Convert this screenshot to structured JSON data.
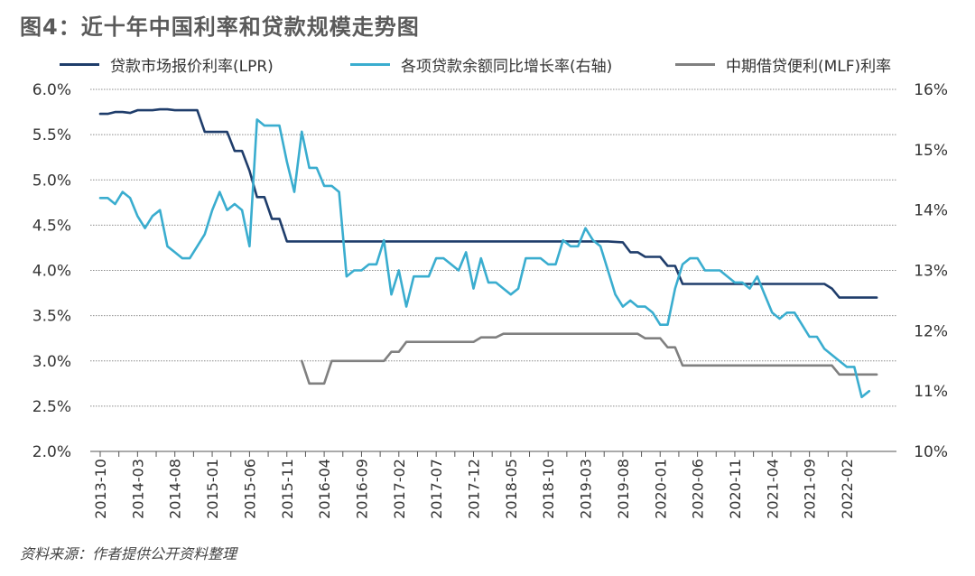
{
  "title": "图4：近十年中国利率和贷款规模走势图",
  "source": "资料来源：作者提供公开资料整理",
  "legend": [
    {
      "name": "贷款市场报价利率(LPR)",
      "color": "#1f3d6b"
    },
    {
      "name": "各项贷款余额同比增长率(右轴)",
      "color": "#3aadcf"
    },
    {
      "name": "中期借贷便利(MLF)利率",
      "color": "#808080"
    }
  ],
  "chart_data": {
    "type": "line",
    "x_axis": {
      "ticks": [
        "2013-10",
        "2014-03",
        "2014-08",
        "2015-01",
        "2015-06",
        "2015-11",
        "2016-04",
        "2016-09",
        "2017-02",
        "2017-07",
        "2017-12",
        "2018-05",
        "2018-10",
        "2019-03",
        "2019-08",
        "2020-01",
        "2020-06",
        "2020-11",
        "2021-04",
        "2021-09",
        "2022-02"
      ]
    },
    "y_left": {
      "range": [
        2.0,
        6.0
      ],
      "ticks": [
        "2.0%",
        "2.5%",
        "3.0%",
        "3.5%",
        "4.0%",
        "4.5%",
        "5.0%",
        "5.5%",
        "6.0%"
      ]
    },
    "y_right": {
      "range": [
        10,
        16
      ],
      "ticks": [
        "10%",
        "11%",
        "12%",
        "13%",
        "14%",
        "15%",
        "16%"
      ]
    },
    "grid": true,
    "legend_position": "top",
    "series": [
      {
        "name": "贷款市场报价利率(LPR)",
        "axis": "left",
        "color": "#1f3d6b",
        "points": [
          [
            "2013-10",
            5.73
          ],
          [
            "2013-11",
            5.73
          ],
          [
            "2013-12",
            5.75
          ],
          [
            "2014-01",
            5.75
          ],
          [
            "2014-02",
            5.74
          ],
          [
            "2014-03",
            5.77
          ],
          [
            "2014-04",
            5.77
          ],
          [
            "2014-05",
            5.77
          ],
          [
            "2014-06",
            5.78
          ],
          [
            "2014-07",
            5.78
          ],
          [
            "2014-08",
            5.77
          ],
          [
            "2014-09",
            5.77
          ],
          [
            "2014-10",
            5.77
          ],
          [
            "2014-11",
            5.77
          ],
          [
            "2014-12",
            5.53
          ],
          [
            "2015-01",
            5.53
          ],
          [
            "2015-02",
            5.53
          ],
          [
            "2015-03",
            5.53
          ],
          [
            "2015-04",
            5.32
          ],
          [
            "2015-05",
            5.32
          ],
          [
            "2015-06",
            5.1
          ],
          [
            "2015-07",
            4.81
          ],
          [
            "2015-08",
            4.81
          ],
          [
            "2015-09",
            4.57
          ],
          [
            "2015-10",
            4.57
          ],
          [
            "2015-11",
            4.32
          ],
          [
            "2015-12",
            4.32
          ],
          [
            "2016-06",
            4.32
          ],
          [
            "2017-06",
            4.32
          ],
          [
            "2018-03",
            4.32
          ],
          [
            "2018-06",
            4.32
          ],
          [
            "2019-01",
            4.32
          ],
          [
            "2019-06",
            4.32
          ],
          [
            "2019-08",
            4.31
          ],
          [
            "2019-09",
            4.2
          ],
          [
            "2019-10",
            4.2
          ],
          [
            "2019-11",
            4.15
          ],
          [
            "2019-12",
            4.15
          ],
          [
            "2020-01",
            4.15
          ],
          [
            "2020-02",
            4.05
          ],
          [
            "2020-03",
            4.05
          ],
          [
            "2020-04",
            3.85
          ],
          [
            "2020-06",
            3.85
          ],
          [
            "2020-12",
            3.85
          ],
          [
            "2021-06",
            3.85
          ],
          [
            "2021-11",
            3.85
          ],
          [
            "2021-12",
            3.8
          ],
          [
            "2022-01",
            3.7
          ],
          [
            "2022-03",
            3.7
          ],
          [
            "2022-06",
            3.7
          ]
        ]
      },
      {
        "name": "各项贷款余额同比增长率(右轴)",
        "axis": "right",
        "color": "#3aadcf",
        "points": [
          [
            "2013-10",
            14.2
          ],
          [
            "2013-11",
            14.2
          ],
          [
            "2013-12",
            14.1
          ],
          [
            "2014-01",
            14.3
          ],
          [
            "2014-02",
            14.2
          ],
          [
            "2014-03",
            13.9
          ],
          [
            "2014-04",
            13.7
          ],
          [
            "2014-05",
            13.9
          ],
          [
            "2014-06",
            14.0
          ],
          [
            "2014-07",
            13.4
          ],
          [
            "2014-08",
            13.3
          ],
          [
            "2014-09",
            13.2
          ],
          [
            "2014-10",
            13.2
          ],
          [
            "2014-11",
            13.4
          ],
          [
            "2014-12",
            13.6
          ],
          [
            "2015-01",
            14.0
          ],
          [
            "2015-02",
            14.3
          ],
          [
            "2015-03",
            14.0
          ],
          [
            "2015-04",
            14.1
          ],
          [
            "2015-05",
            14.0
          ],
          [
            "2015-06",
            13.4
          ],
          [
            "2015-07",
            15.5
          ],
          [
            "2015-08",
            15.4
          ],
          [
            "2015-09",
            15.4
          ],
          [
            "2015-10",
            15.4
          ],
          [
            "2015-11",
            14.8
          ],
          [
            "2015-12",
            14.3
          ],
          [
            "2016-01",
            15.3
          ],
          [
            "2016-02",
            14.7
          ],
          [
            "2016-03",
            14.7
          ],
          [
            "2016-04",
            14.4
          ],
          [
            "2016-05",
            14.4
          ],
          [
            "2016-06",
            14.3
          ],
          [
            "2016-07",
            12.9
          ],
          [
            "2016-08",
            13.0
          ],
          [
            "2016-09",
            13.0
          ],
          [
            "2016-10",
            13.1
          ],
          [
            "2016-11",
            13.1
          ],
          [
            "2016-12",
            13.5
          ],
          [
            "2017-01",
            12.6
          ],
          [
            "2017-02",
            13.0
          ],
          [
            "2017-03",
            12.4
          ],
          [
            "2017-04",
            12.9
          ],
          [
            "2017-05",
            12.9
          ],
          [
            "2017-06",
            12.9
          ],
          [
            "2017-07",
            13.2
          ],
          [
            "2017-08",
            13.2
          ],
          [
            "2017-09",
            13.1
          ],
          [
            "2017-10",
            13.0
          ],
          [
            "2017-11",
            13.3
          ],
          [
            "2017-12",
            12.7
          ],
          [
            "2018-01",
            13.2
          ],
          [
            "2018-02",
            12.8
          ],
          [
            "2018-03",
            12.8
          ],
          [
            "2018-04",
            12.7
          ],
          [
            "2018-05",
            12.6
          ],
          [
            "2018-06",
            12.7
          ],
          [
            "2018-07",
            13.2
          ],
          [
            "2018-08",
            13.2
          ],
          [
            "2018-09",
            13.2
          ],
          [
            "2018-10",
            13.1
          ],
          [
            "2018-11",
            13.1
          ],
          [
            "2018-12",
            13.5
          ],
          [
            "2019-01",
            13.4
          ],
          [
            "2019-02",
            13.4
          ],
          [
            "2019-03",
            13.7
          ],
          [
            "2019-04",
            13.5
          ],
          [
            "2019-05",
            13.4
          ],
          [
            "2019-06",
            13.0
          ],
          [
            "2019-07",
            12.6
          ],
          [
            "2019-08",
            12.4
          ],
          [
            "2019-09",
            12.5
          ],
          [
            "2019-10",
            12.4
          ],
          [
            "2019-11",
            12.4
          ],
          [
            "2019-12",
            12.3
          ],
          [
            "2020-01",
            12.1
          ],
          [
            "2020-02",
            12.1
          ],
          [
            "2020-03",
            12.7
          ],
          [
            "2020-04",
            13.1
          ],
          [
            "2020-05",
            13.2
          ],
          [
            "2020-06",
            13.2
          ],
          [
            "2020-07",
            13.0
          ],
          [
            "2020-08",
            13.0
          ],
          [
            "2020-09",
            13.0
          ],
          [
            "2020-10",
            12.9
          ],
          [
            "2020-11",
            12.8
          ],
          [
            "2020-12",
            12.8
          ],
          [
            "2021-01",
            12.7
          ],
          [
            "2021-02",
            12.9
          ],
          [
            "2021-03",
            12.6
          ],
          [
            "2021-04",
            12.3
          ],
          [
            "2021-05",
            12.2
          ],
          [
            "2021-06",
            12.3
          ],
          [
            "2021-07",
            12.3
          ],
          [
            "2021-08",
            12.1
          ],
          [
            "2021-09",
            11.9
          ],
          [
            "2021-10",
            11.9
          ],
          [
            "2021-11",
            11.7
          ],
          [
            "2021-12",
            11.6
          ],
          [
            "2022-01",
            11.5
          ],
          [
            "2022-02",
            11.4
          ],
          [
            "2022-03",
            11.4
          ],
          [
            "2022-04",
            10.9
          ],
          [
            "2022-05",
            11.0
          ]
        ]
      },
      {
        "name": "中期借贷便利(MLF)利率",
        "axis": "left",
        "color": "#808080",
        "points": [
          [
            "2016-01",
            3.0
          ],
          [
            "2016-02",
            2.75
          ],
          [
            "2016-03",
            2.75
          ],
          [
            "2016-04",
            2.75
          ],
          [
            "2016-05",
            3.0
          ],
          [
            "2016-06",
            3.0
          ],
          [
            "2016-07",
            3.0
          ],
          [
            "2016-08",
            3.0
          ],
          [
            "2016-09",
            3.0
          ],
          [
            "2016-10",
            3.0
          ],
          [
            "2016-11",
            3.0
          ],
          [
            "2016-12",
            3.0
          ],
          [
            "2017-01",
            3.1
          ],
          [
            "2017-02",
            3.1
          ],
          [
            "2017-03",
            3.21
          ],
          [
            "2017-06",
            3.21
          ],
          [
            "2017-12",
            3.21
          ],
          [
            "2018-01",
            3.26
          ],
          [
            "2018-02",
            3.26
          ],
          [
            "2018-03",
            3.26
          ],
          [
            "2018-04",
            3.3
          ],
          [
            "2018-05",
            3.3
          ],
          [
            "2018-06",
            3.3
          ],
          [
            "2018-12",
            3.3
          ],
          [
            "2019-06",
            3.3
          ],
          [
            "2019-10",
            3.3
          ],
          [
            "2019-11",
            3.25
          ],
          [
            "2019-12",
            3.25
          ],
          [
            "2020-01",
            3.25
          ],
          [
            "2020-02",
            3.15
          ],
          [
            "2020-03",
            3.15
          ],
          [
            "2020-04",
            2.95
          ],
          [
            "2020-06",
            2.95
          ],
          [
            "2020-12",
            2.95
          ],
          [
            "2021-06",
            2.95
          ],
          [
            "2021-12",
            2.95
          ],
          [
            "2022-01",
            2.85
          ],
          [
            "2022-03",
            2.85
          ],
          [
            "2022-06",
            2.85
          ]
        ]
      }
    ]
  }
}
